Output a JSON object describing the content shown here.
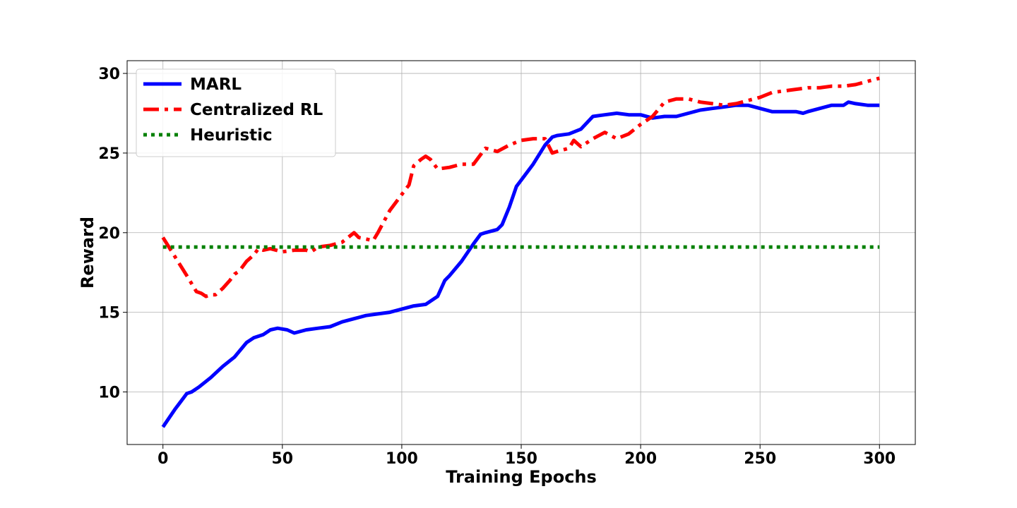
{
  "chart_data": {
    "type": "line",
    "xlabel": "Training Epochs",
    "ylabel": "Reward",
    "xlim": [
      -15,
      315
    ],
    "ylim": [
      6.7,
      30.8
    ],
    "xticks": [
      0,
      50,
      100,
      150,
      200,
      250,
      300
    ],
    "yticks": [
      10,
      15,
      20,
      25,
      30
    ],
    "grid": true,
    "legend_position": "top-left",
    "series": [
      {
        "name": "MARL",
        "color": "#0000ff",
        "style": "solid",
        "x": [
          0,
          5,
          10,
          12,
          15,
          20,
          25,
          30,
          35,
          38,
          42,
          45,
          48,
          52,
          55,
          60,
          65,
          70,
          75,
          80,
          85,
          90,
          95,
          100,
          105,
          110,
          115,
          118,
          120,
          125,
          130,
          133,
          135,
          140,
          142,
          145,
          148,
          150,
          155,
          160,
          163,
          165,
          170,
          175,
          180,
          185,
          190,
          195,
          200,
          205,
          210,
          215,
          220,
          225,
          230,
          235,
          240,
          245,
          250,
          255,
          260,
          265,
          268,
          270,
          275,
          280,
          285,
          287,
          290,
          295,
          300
        ],
        "y": [
          7.8,
          8.9,
          9.9,
          10.0,
          10.3,
          10.9,
          11.6,
          12.2,
          13.1,
          13.4,
          13.6,
          13.9,
          14.0,
          13.9,
          13.7,
          13.9,
          14.0,
          14.1,
          14.4,
          14.6,
          14.8,
          14.9,
          15.0,
          15.2,
          15.4,
          15.5,
          16.0,
          17.0,
          17.3,
          18.2,
          19.3,
          19.9,
          20.0,
          20.2,
          20.5,
          21.6,
          22.9,
          23.3,
          24.3,
          25.5,
          26.0,
          26.1,
          26.2,
          26.5,
          27.3,
          27.4,
          27.5,
          27.4,
          27.4,
          27.2,
          27.3,
          27.3,
          27.5,
          27.7,
          27.8,
          27.9,
          28.0,
          28.0,
          27.8,
          27.6,
          27.6,
          27.6,
          27.5,
          27.6,
          27.8,
          28.0,
          28.0,
          28.2,
          28.1,
          28.0,
          28.0
        ]
      },
      {
        "name": "Centralized RL",
        "color": "#ff0000",
        "style": "dashdot",
        "x": [
          0,
          5,
          10,
          14,
          16,
          18,
          20,
          22,
          25,
          28,
          30,
          32,
          35,
          38,
          40,
          42,
          45,
          50,
          55,
          60,
          62,
          65,
          70,
          75,
          80,
          82,
          85,
          88,
          90,
          95,
          100,
          103,
          105,
          108,
          110,
          112,
          115,
          120,
          125,
          130,
          135,
          140,
          145,
          150,
          155,
          160,
          163,
          165,
          170,
          172,
          175,
          180,
          185,
          190,
          195,
          200,
          205,
          210,
          215,
          220,
          225,
          230,
          235,
          240,
          245,
          250,
          255,
          260,
          265,
          270,
          275,
          280,
          285,
          290,
          295,
          300
        ],
        "y": [
          19.7,
          18.5,
          17.3,
          16.3,
          16.2,
          16.0,
          16.1,
          16.1,
          16.5,
          17.0,
          17.4,
          17.6,
          18.2,
          18.6,
          19.0,
          18.9,
          19.0,
          18.8,
          18.9,
          18.9,
          18.8,
          19.1,
          19.2,
          19.4,
          20.0,
          19.7,
          19.6,
          19.5,
          20.0,
          21.4,
          22.4,
          23.0,
          24.2,
          24.6,
          24.8,
          24.6,
          24.0,
          24.1,
          24.3,
          24.3,
          25.3,
          25.1,
          25.5,
          25.8,
          25.9,
          25.9,
          25.0,
          25.1,
          25.3,
          25.8,
          25.4,
          25.9,
          26.3,
          25.9,
          26.2,
          26.8,
          27.3,
          28.2,
          28.4,
          28.4,
          28.2,
          28.1,
          28.0,
          28.1,
          28.3,
          28.5,
          28.8,
          28.9,
          29.0,
          29.1,
          29.1,
          29.2,
          29.2,
          29.3,
          29.5,
          29.7
        ]
      },
      {
        "name": "Heuristic",
        "color": "#008000",
        "style": "dotted",
        "x": [
          0,
          300
        ],
        "y": [
          19.1,
          19.1
        ]
      }
    ]
  }
}
